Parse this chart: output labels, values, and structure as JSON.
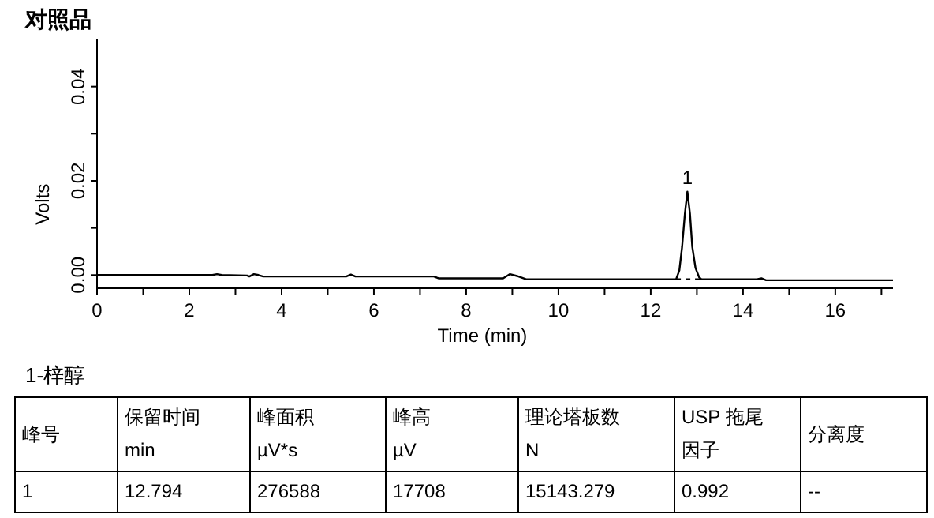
{
  "chart_data": {
    "type": "line",
    "title": "对照品",
    "xlabel": "Time (min)",
    "ylabel": "Volts",
    "xlim": [
      0,
      17.25
    ],
    "ylim": [
      -0.0028,
      0.05
    ],
    "xticks": [
      0,
      {
        "value": 1,
        "label": null
      },
      2,
      {
        "value": 3,
        "label": null
      },
      4,
      {
        "value": 5,
        "label": null
      },
      6,
      {
        "value": 7,
        "label": null
      },
      8,
      {
        "value": 9,
        "label": null
      },
      10,
      {
        "value": 11,
        "label": null
      },
      12,
      {
        "value": 13,
        "label": null
      },
      14,
      {
        "value": 15,
        "label": null
      },
      16,
      {
        "value": 17,
        "label": null
      }
    ],
    "yticks": [
      {
        "value": 0,
        "label": "0.00"
      },
      {
        "value": 0.01,
        "label": null
      },
      {
        "value": 0.02,
        "label": "0.02"
      },
      {
        "value": 0.03,
        "label": null
      },
      {
        "value": 0.04,
        "label": "0.04"
      }
    ],
    "marker": "none",
    "grid": false,
    "series": [
      {
        "color": "#000000",
        "line_style": "solid",
        "x": [
          0,
          2.5,
          2.6,
          2.7,
          3.25,
          3.3,
          3.4,
          3.5,
          3.6,
          5.4,
          5.5,
          5.6,
          7.3,
          7.4,
          8.8,
          8.95,
          9.1,
          9.3,
          12.55,
          12.62,
          12.68,
          12.74,
          12.794,
          12.85,
          12.9,
          12.97,
          13.05,
          13.1,
          14.3,
          14.4,
          14.5,
          17.25
        ],
        "values": [
          0,
          0,
          0.0002,
          0,
          -0.0001,
          -0.0003,
          0.0002,
          0,
          -0.0003,
          -0.0003,
          0.0001,
          -0.0003,
          -0.0003,
          -0.0007,
          -0.0007,
          0.0002,
          -0.0002,
          -0.0009,
          -0.0009,
          0.001,
          0.006,
          0.013,
          0.0177,
          0.013,
          0.006,
          0.0015,
          -0.0005,
          -0.0009,
          -0.0009,
          -0.0007,
          -0.0011,
          -0.0011
        ]
      },
      {
        "color": "#000000",
        "line_style": "dashed",
        "x": [
          12.55,
          13.1
        ],
        "values": [
          -0.0009,
          -0.0009
        ]
      }
    ],
    "annotations": [
      {
        "text": "1",
        "x": 12.794,
        "y": 0.0177
      },
      "1-梓醇",
      "峰号",
      "保留时间 min",
      "峰面积 µV*s",
      "峰高 µV",
      "理论塔板数 N",
      "USP 拖尾因子",
      "分离度",
      "1",
      "12.794",
      "276588",
      "17708",
      "15143.279",
      "0.992",
      "--"
    ]
  }
}
